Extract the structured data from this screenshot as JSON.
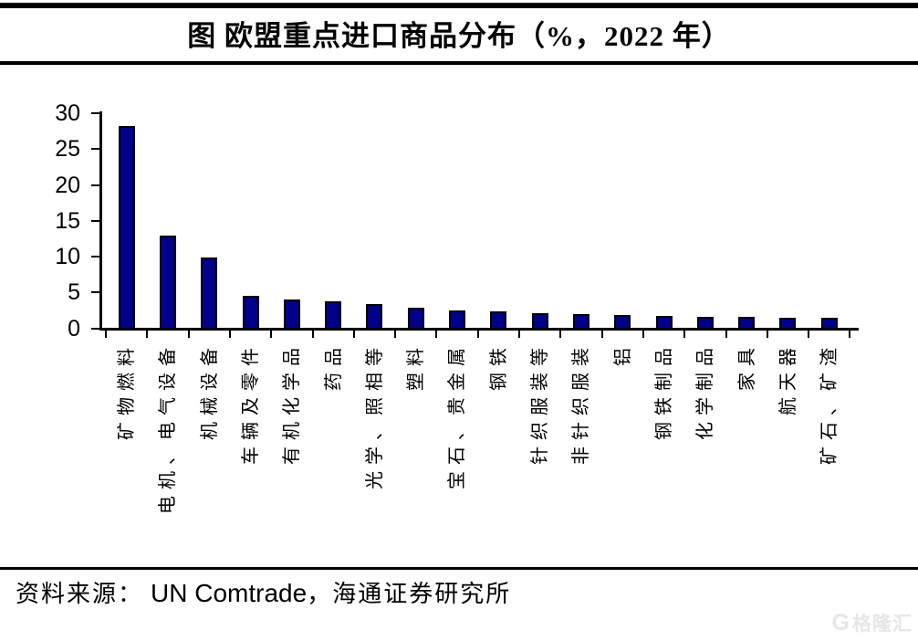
{
  "figure": {
    "title": "图 欧盟重点进口商品分布（%，2022 年）"
  },
  "chart_data": {
    "type": "bar",
    "title": "图 欧盟重点进口商品分布（%，2022 年）",
    "unit": "%",
    "year": "2022",
    "categories": [
      "矿物燃料",
      "电机、电气设备",
      "机械设备",
      "车辆及零件",
      "有机化学品",
      "药品",
      "光学、照相等",
      "塑料",
      "宝石、贵金属",
      "钢铁",
      "针织服装等",
      "非针织服装",
      "铝",
      "钢铁制品",
      "化学制品",
      "家具",
      "航天器",
      "矿石、矿渣"
    ],
    "values": [
      27.9,
      12.6,
      9.6,
      4.2,
      3.7,
      3.4,
      3.0,
      2.5,
      2.2,
      2.0,
      1.8,
      1.6,
      1.5,
      1.4,
      1.3,
      1.3,
      1.1,
      1.1
    ],
    "xlabel": "",
    "ylabel": "",
    "ylim": [
      0,
      30
    ],
    "yticks": [
      0,
      5,
      10,
      15,
      20,
      25,
      30
    ],
    "grid": false,
    "legend": "none",
    "bar_color": "#00008B",
    "bar_border_color": "#000000"
  },
  "footer": {
    "source_label": "资料来源：",
    "source_en": "UN Comtrade",
    "source_cn": "，海通证券研究所"
  },
  "watermark": {
    "logo": "G",
    "text": "格隆汇"
  }
}
